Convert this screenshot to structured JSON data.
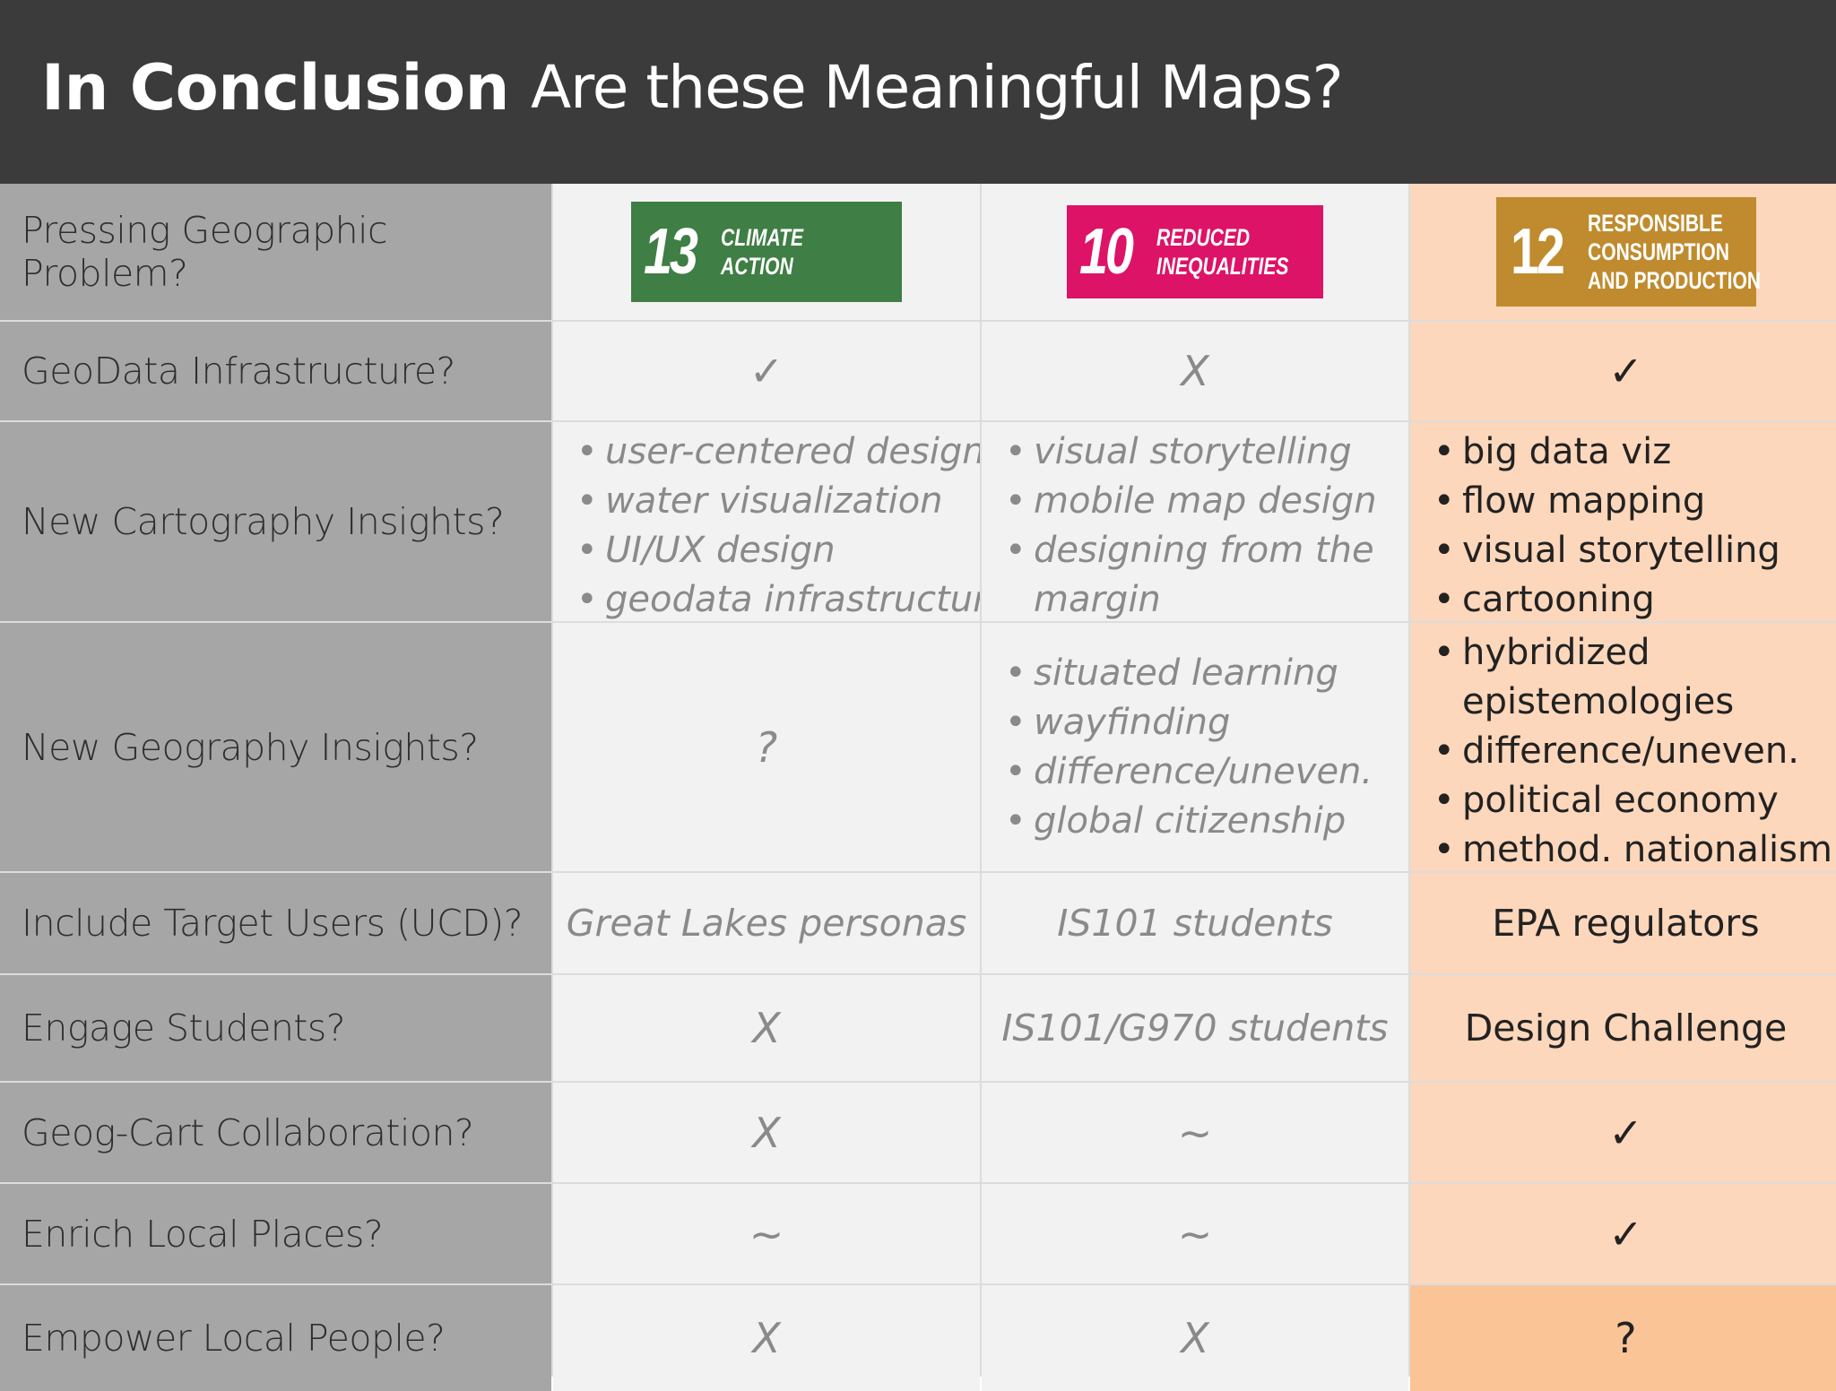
{
  "title": {
    "bold": "In Conclusion",
    "light": "Are these Meaningful Maps?"
  },
  "colors": {
    "title_bar": "#3b3b3b",
    "label_col": "#a6a6a6",
    "grey_col": "#f2f2f2",
    "peach_col": "#fdd7bb",
    "sdg13": "#3f7e44",
    "sdg10": "#dd1367",
    "sdg12": "#bf8b2e"
  },
  "rows": {
    "pressing_problem": {
      "label": "Pressing Geographic Problem?",
      "sdg13": {
        "number": "13",
        "line1": "CLIMATE",
        "line2": "ACTION"
      },
      "sdg10": {
        "number": "10",
        "line1": "REDUCED",
        "line2": "INEQUALITIES"
      },
      "sdg12": {
        "number": "12",
        "line1": "RESPONSIBLE",
        "line2": "CONSUMPTION",
        "line3": "AND PRODUCTION"
      }
    },
    "geodata": {
      "label": "GeoData Infrastructure?",
      "c1": "✓",
      "c2": "X",
      "c3": "✓"
    },
    "cartography": {
      "label": "New Cartography Insights?",
      "c1": [
        "user-centered design",
        "water visualization",
        "UI/UX design",
        "geodata infrastructure"
      ],
      "c2": [
        "visual storytelling",
        "mobile map design",
        "designing from the margin"
      ],
      "c3": [
        "big data viz",
        "flow mapping",
        "visual storytelling",
        "cartooning"
      ]
    },
    "geography": {
      "label": "New Geography Insights?",
      "c1": "?",
      "c2": [
        "situated learning",
        "wayfinding",
        "difference/uneven.",
        "global citizenship"
      ],
      "c3": [
        "hybridized epistemologies",
        "difference/uneven.",
        "political economy",
        "method. nationalism"
      ]
    },
    "target_users": {
      "label": "Include Target Users (UCD)?",
      "c1": "Great Lakes personas",
      "c2": "IS101 students",
      "c3": "EPA regulators"
    },
    "engage": {
      "label": "Engage Students?",
      "c1": "X",
      "c2": "IS101/G970 students",
      "c3": "Design Challenge"
    },
    "collab": {
      "label": "Geog-Cart Collaboration?",
      "c1": "X",
      "c2": "~",
      "c3": "✓"
    },
    "enrich": {
      "label": "Enrich Local Places?",
      "c1": "~",
      "c2": "~",
      "c3": "✓"
    },
    "empower": {
      "label": "Empower Local People?",
      "c1": "X",
      "c2": "X",
      "c3": "?"
    }
  }
}
